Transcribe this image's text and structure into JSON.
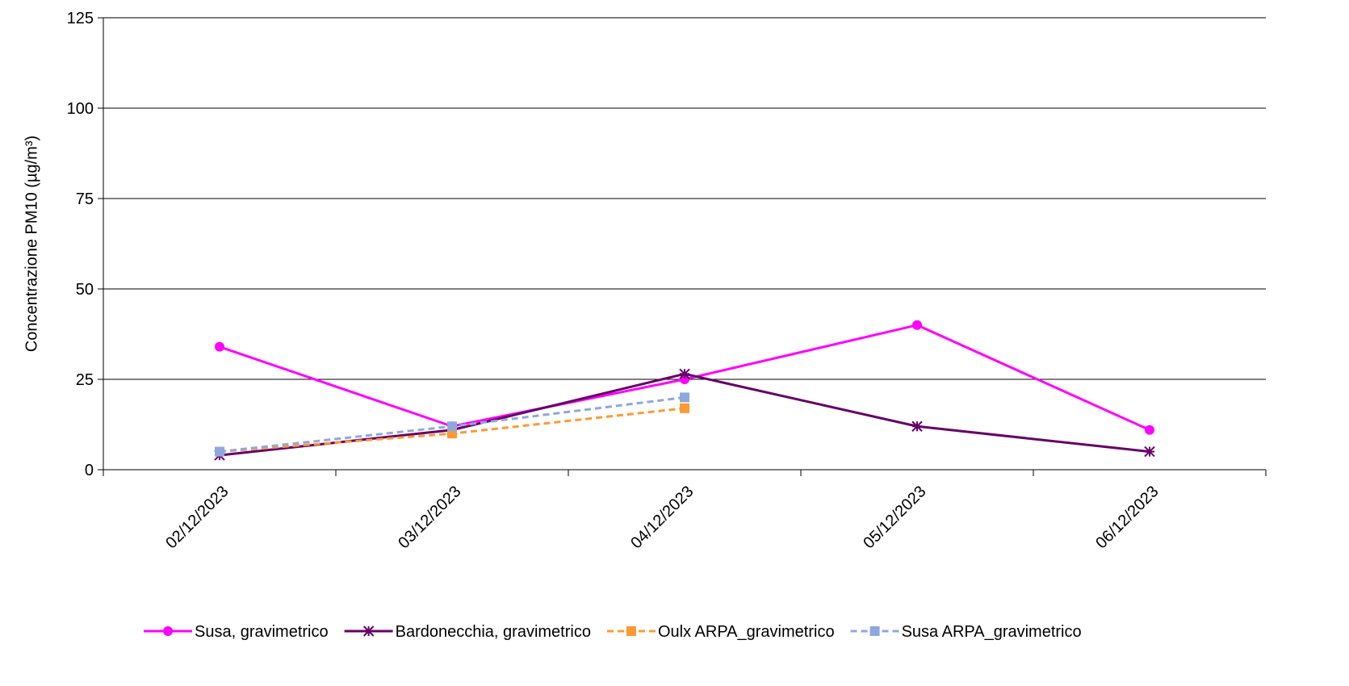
{
  "chart_data": {
    "type": "line",
    "title": "",
    "xlabel": "",
    "ylabel": "Concentrazione PM10 (µg/m³)",
    "ylim": [
      0,
      125
    ],
    "yticks": [
      0,
      25,
      50,
      75,
      100,
      125
    ],
    "categories": [
      "02/12/2023",
      "03/12/2023",
      "04/12/2023",
      "05/12/2023",
      "06/12/2023"
    ],
    "grid": "horizontal",
    "legend_position": "bottom",
    "series": [
      {
        "name": "Susa, gravimetrico",
        "values": [
          34,
          12,
          25,
          40,
          11
        ],
        "color": "#ff00ff",
        "dash": false,
        "marker": "circle"
      },
      {
        "name": "Bardonecchia,  gravimetrico",
        "values": [
          4,
          11,
          26.5,
          12,
          5
        ],
        "color": "#660066",
        "dash": false,
        "marker": "star"
      },
      {
        "name": "Oulx ARPA_gravimetrico",
        "values": [
          5,
          10,
          17,
          null,
          null
        ],
        "color": "#ff9933",
        "dash": true,
        "marker": "square"
      },
      {
        "name": "Susa ARPA_gravimetrico",
        "values": [
          5,
          12,
          20,
          null,
          null
        ],
        "color": "#8fa8dc",
        "dash": true,
        "marker": "square"
      }
    ]
  }
}
